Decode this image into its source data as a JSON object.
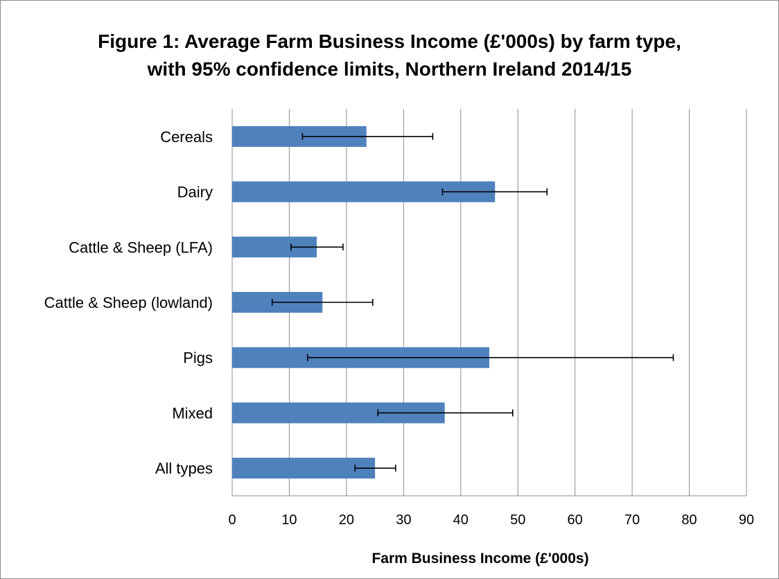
{
  "chart_data": {
    "type": "bar",
    "orientation": "horizontal",
    "title_lines": [
      "Figure 1: Average Farm Business Income (£'000s) by farm type,",
      "with 95% confidence limits, Northern Ireland 2014/15"
    ],
    "xlabel": "Farm Business Income (£'000s)",
    "ylabel": "",
    "categories": [
      "Cereals",
      "Dairy",
      "Cattle & Sheep (LFA)",
      "Cattle & Sheep (lowland)",
      "Pigs",
      "Mixed",
      "All types"
    ],
    "values": [
      23.5,
      46,
      14.8,
      15.8,
      45,
      37.2,
      25
    ],
    "error_low": [
      12.3,
      36.8,
      10.3,
      7,
      13.2,
      25.5,
      21.5
    ],
    "error_high": [
      35.1,
      55.1,
      19.4,
      24.6,
      77.2,
      49.1,
      28.6
    ],
    "xlim": [
      0,
      90
    ],
    "xticks": [
      "0",
      "10",
      "20",
      "30",
      "40",
      "50",
      "60",
      "70",
      "80",
      "90"
    ],
    "grid": "vertical",
    "bar_color": "#4f81bd",
    "grid_color": "#8c8c8c",
    "error_color": "#000000"
  }
}
